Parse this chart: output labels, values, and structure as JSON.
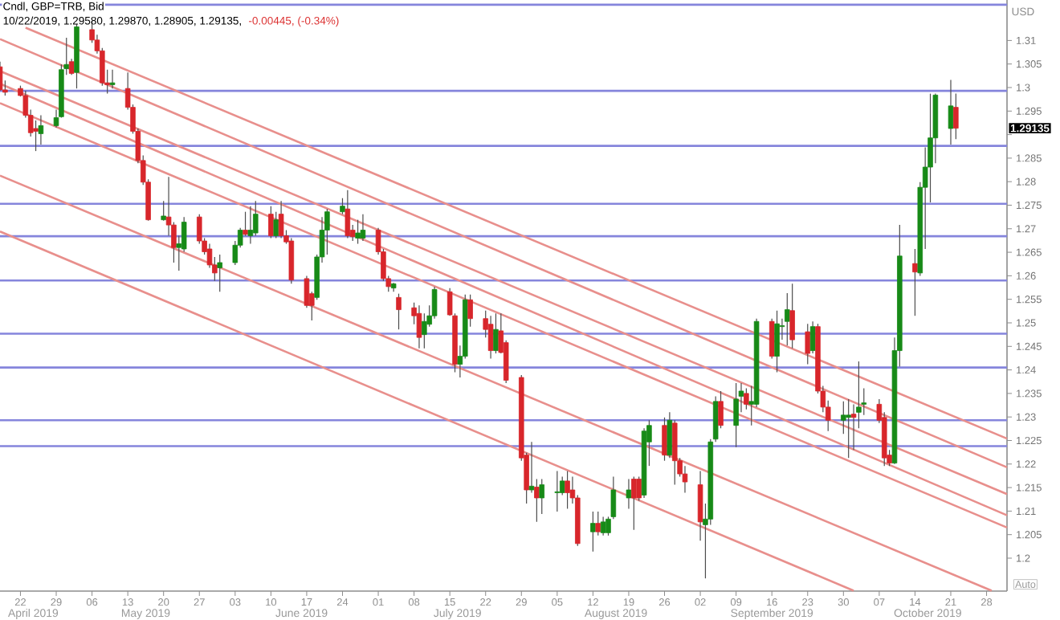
{
  "chart_data": {
    "type": "candlestick",
    "title": "Cndl, GBP=TRB, Bid",
    "subtitle": "10/22/2019, 1.29580, 1.29870, 1.28905, 1.29135,",
    "ylabel": "USD",
    "x": [
      "2019-04-18",
      "2019-04-19",
      "2019-04-22",
      "2019-04-23",
      "2019-04-24",
      "2019-04-25",
      "2019-04-26",
      "2019-04-29",
      "2019-04-30",
      "2019-05-01",
      "2019-05-02",
      "2019-05-03",
      "2019-05-06",
      "2019-05-07",
      "2019-05-08",
      "2019-05-09",
      "2019-05-10",
      "2019-05-13",
      "2019-05-14",
      "2019-05-15",
      "2019-05-16",
      "2019-05-17",
      "2019-05-20",
      "2019-05-21",
      "2019-05-22",
      "2019-05-23",
      "2019-05-24",
      "2019-05-27",
      "2019-05-28",
      "2019-05-29",
      "2019-05-30",
      "2019-05-31",
      "2019-06-03",
      "2019-06-04",
      "2019-06-05",
      "2019-06-06",
      "2019-06-07",
      "2019-06-10",
      "2019-06-11",
      "2019-06-12",
      "2019-06-13",
      "2019-06-14",
      "2019-06-17",
      "2019-06-18",
      "2019-06-19",
      "2019-06-20",
      "2019-06-21",
      "2019-06-24",
      "2019-06-25",
      "2019-06-26",
      "2019-06-27",
      "2019-06-28",
      "2019-07-01",
      "2019-07-02",
      "2019-07-03",
      "2019-07-04",
      "2019-07-05",
      "2019-07-08",
      "2019-07-09",
      "2019-07-10",
      "2019-07-11",
      "2019-07-12",
      "2019-07-15",
      "2019-07-16",
      "2019-07-17",
      "2019-07-18",
      "2019-07-19",
      "2019-07-22",
      "2019-07-23",
      "2019-07-24",
      "2019-07-25",
      "2019-07-26",
      "2019-07-29",
      "2019-07-30",
      "2019-07-31",
      "2019-08-01",
      "2019-08-02",
      "2019-08-05",
      "2019-08-06",
      "2019-08-07",
      "2019-08-08",
      "2019-08-09",
      "2019-08-12",
      "2019-08-13",
      "2019-08-14",
      "2019-08-15",
      "2019-08-16",
      "2019-08-19",
      "2019-08-20",
      "2019-08-21",
      "2019-08-22",
      "2019-08-23",
      "2019-08-26",
      "2019-08-27",
      "2019-08-28",
      "2019-08-29",
      "2019-08-30",
      "2019-09-02",
      "2019-09-03",
      "2019-09-04",
      "2019-09-05",
      "2019-09-06",
      "2019-09-09",
      "2019-09-10",
      "2019-09-11",
      "2019-09-12",
      "2019-09-13",
      "2019-09-16",
      "2019-09-17",
      "2019-09-18",
      "2019-09-19",
      "2019-09-20",
      "2019-09-23",
      "2019-09-24",
      "2019-09-25",
      "2019-09-26",
      "2019-09-27",
      "2019-09-30",
      "2019-10-01",
      "2019-10-02",
      "2019-10-03",
      "2019-10-04",
      "2019-10-07",
      "2019-10-08",
      "2019-10-09",
      "2019-10-10",
      "2019-10-11",
      "2019-10-14",
      "2019-10-15",
      "2019-10-16",
      "2019-10-17",
      "2019-10-18",
      "2019-10-21",
      "2019-10-22"
    ],
    "ohlc": [
      [
        1.3044,
        1.3055,
        1.2993,
        1.2995
      ],
      [
        1.2995,
        1.3015,
        1.2983,
        1.299
      ],
      [
        1.2998,
        1.3004,
        1.2981,
        1.2983
      ],
      [
        1.2983,
        1.2993,
        1.2936,
        1.2941
      ],
      [
        1.2941,
        1.2953,
        1.2896,
        1.2904
      ],
      [
        1.2913,
        1.293,
        1.2865,
        1.2907
      ],
      [
        1.2902,
        1.2941,
        1.2879,
        1.2919
      ],
      [
        1.2919,
        1.2953,
        1.2915,
        1.2936
      ],
      [
        1.2938,
        1.3049,
        1.2936,
        1.3038
      ],
      [
        1.304,
        1.3106,
        1.3027,
        1.3049
      ],
      [
        1.3055,
        1.3061,
        1.3027,
        1.303
      ],
      [
        1.3032,
        1.3135,
        1.2998,
        1.3129
      ],
      [
        1.3123,
        1.3141,
        1.3095,
        1.3101
      ],
      [
        1.3101,
        1.3112,
        1.3072,
        1.3078
      ],
      [
        1.3078,
        1.3084,
        1.3004,
        1.301
      ],
      [
        1.301,
        1.3038,
        1.2987,
        1.3006
      ],
      [
        1.3006,
        1.3038,
        1.2998,
        1.301
      ],
      [
        1.2998,
        1.3032,
        1.2953,
        1.2958
      ],
      [
        1.2958,
        1.2964,
        1.2902,
        1.2907
      ],
      [
        1.2907,
        1.2913,
        1.2839,
        1.2845
      ],
      [
        1.2845,
        1.2856,
        1.2793,
        1.2799
      ],
      [
        1.2799,
        1.2805,
        1.2717,
        1.2719
      ],
      [
        1.2719,
        1.2759,
        1.2717,
        1.2727
      ],
      [
        1.2725,
        1.281,
        1.2685,
        1.2708
      ],
      [
        1.2708,
        1.2714,
        1.2628,
        1.266
      ],
      [
        1.266,
        1.2685,
        1.2611,
        1.2668
      ],
      [
        1.2657,
        1.2725,
        1.2651,
        1.2714
      ],
      [
        1.2725,
        1.2731,
        1.2668,
        1.2674
      ],
      [
        1.2674,
        1.268,
        1.2645,
        1.2651
      ],
      [
        1.2657,
        1.2668,
        1.2617,
        1.2623
      ],
      [
        1.2623,
        1.264,
        1.2589,
        1.2606
      ],
      [
        1.2617,
        1.2645,
        1.2566,
        1.2628
      ],
      [
        1.2628,
        1.2674,
        1.2623,
        1.2665
      ],
      [
        1.2665,
        1.2702,
        1.266,
        1.2697
      ],
      [
        1.2697,
        1.2736,
        1.2685,
        1.2688
      ],
      [
        1.2685,
        1.2748,
        1.2668,
        1.2697
      ],
      [
        1.2691,
        1.2759,
        1.2685,
        1.2731
      ],
      [
        1.2731,
        1.2748,
        1.268,
        1.2685
      ],
      [
        1.2685,
        1.2736,
        1.268,
        1.2719
      ],
      [
        1.2731,
        1.2759,
        1.268,
        1.2685
      ],
      [
        1.2685,
        1.2697,
        1.2668,
        1.2672
      ],
      [
        1.2674,
        1.268,
        1.2583,
        1.2591
      ],
      [
        1.2594,
        1.26,
        1.2532,
        1.2537
      ],
      [
        1.2562,
        1.2566,
        1.2505,
        1.2537
      ],
      [
        1.2554,
        1.2645,
        1.2549,
        1.264
      ],
      [
        1.264,
        1.2725,
        1.2628,
        1.2697
      ],
      [
        1.2697,
        1.2742,
        1.2645,
        1.2736
      ],
      [
        1.2736,
        1.2765,
        1.2731,
        1.2748
      ],
      [
        1.2742,
        1.2782,
        1.268,
        1.2685
      ],
      [
        1.2697,
        1.2708,
        1.2674,
        1.2683
      ],
      [
        1.268,
        1.2719,
        1.2668,
        1.2691
      ],
      [
        1.268,
        1.2731,
        1.2674,
        1.2697
      ],
      [
        1.2697,
        1.2702,
        1.2645,
        1.2651
      ],
      [
        1.2651,
        1.2657,
        1.2589,
        1.2594
      ],
      [
        1.2594,
        1.26,
        1.2566,
        1.2577
      ],
      [
        1.2574,
        1.2585,
        1.2566,
        1.2583
      ],
      [
        1.2554,
        1.2562,
        1.2486,
        1.2528
      ],
      [
        1.2532,
        1.2543,
        1.2497,
        1.2515
      ],
      [
        1.252,
        1.2537,
        1.2446,
        1.2469
      ],
      [
        1.2475,
        1.252,
        1.2446,
        1.2503
      ],
      [
        1.2497,
        1.2537,
        1.2492,
        1.2515
      ],
      [
        1.2515,
        1.2577,
        1.2509,
        1.2571
      ],
      [
        1.2566,
        1.2574,
        1.2515,
        1.2517
      ],
      [
        1.2515,
        1.252,
        1.2395,
        1.2412
      ],
      [
        1.2412,
        1.2452,
        1.2384,
        1.2429
      ],
      [
        1.2429,
        1.256,
        1.2424,
        1.2549
      ],
      [
        1.2549,
        1.256,
        1.2492,
        1.2509
      ],
      [
        1.2509,
        1.2526,
        1.2469,
        1.2486
      ],
      [
        1.2497,
        1.2515,
        1.2424,
        1.2441
      ],
      [
        1.2441,
        1.252,
        1.2435,
        1.2486
      ],
      [
        1.2483,
        1.252,
        1.2435,
        1.2437
      ],
      [
        1.2458,
        1.2463,
        1.2372,
        1.2378
      ],
      [
        1.2384,
        1.2389,
        1.2207,
        1.2213
      ],
      [
        1.2219,
        1.2224,
        1.2116,
        1.2145
      ],
      [
        1.2145,
        1.2247,
        1.2139,
        1.2153
      ],
      [
        1.2151,
        1.2168,
        1.2077,
        1.2128
      ],
      [
        1.2128,
        1.2168,
        1.2094,
        1.2156
      ],
      [
        1.2139,
        1.2185,
        1.2099,
        1.2141
      ],
      [
        1.2139,
        1.2173,
        1.2134,
        1.2164
      ],
      [
        1.2164,
        1.2185,
        1.2105,
        1.2139
      ],
      [
        1.2145,
        1.2173,
        1.2116,
        1.2128
      ],
      [
        1.2128,
        1.2134,
        1.2026,
        1.2031
      ],
      [
        1.2056,
        1.2099,
        1.2014,
        1.2074
      ],
      [
        1.2074,
        1.2099,
        1.2048,
        1.2056
      ],
      [
        1.2054,
        1.2088,
        1.2048,
        1.2077
      ],
      [
        1.2054,
        1.2088,
        1.2048,
        1.2083
      ],
      [
        1.2088,
        1.2173,
        1.2083,
        1.2145
      ],
      [
        1.2128,
        1.2168,
        1.2105,
        1.2145
      ],
      [
        1.2168,
        1.2173,
        1.206,
        1.2128
      ],
      [
        1.2168,
        1.2173,
        1.2122,
        1.2128
      ],
      [
        1.2134,
        1.2276,
        1.2128,
        1.227
      ],
      [
        1.2247,
        1.2293,
        1.2196,
        1.2282
      ],
      [
        1.2282,
        1.2299,
        1.2207,
        1.2219
      ],
      [
        1.2219,
        1.231,
        1.2213,
        1.2293
      ],
      [
        1.2287,
        1.2293,
        1.2156,
        1.2207
      ],
      [
        1.2207,
        1.2213,
        1.2173,
        1.2179
      ],
      [
        1.2179,
        1.2196,
        1.2139,
        1.2162
      ],
      [
        1.2156,
        1.2185,
        1.2037,
        1.2077
      ],
      [
        1.2071,
        1.2116,
        1.1957,
        1.2083
      ],
      [
        1.2083,
        1.2253,
        1.2071,
        1.2247
      ],
      [
        1.2253,
        1.2344,
        1.2247,
        1.2333
      ],
      [
        1.2333,
        1.2355,
        1.2276,
        1.2282
      ],
      [
        1.2282,
        1.2372,
        1.2236,
        1.2338
      ],
      [
        1.2344,
        1.2372,
        1.231,
        1.2355
      ],
      [
        1.235,
        1.2361,
        1.2316,
        1.2327
      ],
      [
        1.2327,
        1.2366,
        1.2282,
        1.2333
      ],
      [
        1.2327,
        1.2509,
        1.2321,
        1.2503
      ],
      [
        1.2503,
        1.2509,
        1.2424,
        1.2429
      ],
      [
        1.2429,
        1.2526,
        1.2395,
        1.2498
      ],
      [
        1.2492,
        1.2509,
        1.2464,
        1.2494
      ],
      [
        1.2503,
        1.2563,
        1.2452,
        1.2528
      ],
      [
        1.2526,
        1.2583,
        1.2446,
        1.2464
      ],
      [
        1.2481,
        1.2498,
        1.2412,
        1.2435
      ],
      [
        1.2441,
        1.2503,
        1.2435,
        1.2492
      ],
      [
        1.2492,
        1.2498,
        1.235,
        1.2355
      ],
      [
        1.2355,
        1.2366,
        1.231,
        1.2321
      ],
      [
        1.2321,
        1.2335,
        1.227,
        1.2293
      ],
      [
        1.2293,
        1.2333,
        1.2264,
        1.2304
      ],
      [
        1.2299,
        1.2338,
        1.2213,
        1.2304
      ],
      [
        1.2306,
        1.2327,
        1.223,
        1.2299
      ],
      [
        1.231,
        1.2418,
        1.2276,
        1.2321
      ],
      [
        1.2327,
        1.2361,
        1.2304,
        1.233
      ],
      [
        1.2327,
        1.2338,
        1.2287,
        1.2293
      ],
      [
        1.2299,
        1.231,
        1.2196,
        1.2213
      ],
      [
        1.2219,
        1.223,
        1.2196,
        1.2202
      ],
      [
        1.2202,
        1.2469,
        1.22,
        1.2441
      ],
      [
        1.2441,
        1.2708,
        1.2407,
        1.2642
      ],
      [
        1.2626,
        1.2657,
        1.2515,
        1.2608
      ],
      [
        1.2606,
        1.2799,
        1.26,
        1.2788
      ],
      [
        1.2788,
        1.2873,
        1.2657,
        1.2831
      ],
      [
        1.2831,
        1.2987,
        1.2756,
        1.2893
      ],
      [
        1.2893,
        1.2987,
        1.2839,
        1.2984
      ],
      [
        1.2913,
        1.3016,
        1.2879,
        1.2961
      ],
      [
        1.2958,
        1.2987,
        1.28905,
        1.29135
      ]
    ],
    "series": [
      {
        "type": "line",
        "color": "#e88f8c",
        "x": [
          "2019-04-23",
          "2019-11-01"
        ],
        "values": [
          1.3127,
          1.2254
        ]
      },
      {
        "type": "line",
        "color": "#e88f8c",
        "x": [
          "2019-04-18",
          "2019-11-01"
        ],
        "values": [
          1.3103,
          1.2193
        ]
      },
      {
        "type": "line",
        "color": "#e88f8c",
        "x": [
          "2019-04-18",
          "2019-11-01"
        ],
        "values": [
          1.3035,
          1.2136
        ]
      },
      {
        "type": "line",
        "color": "#e88f8c",
        "x": [
          "2019-04-18",
          "2019-11-01"
        ],
        "values": [
          1.3008,
          1.2091
        ]
      },
      {
        "type": "line",
        "color": "#e88f8c",
        "x": [
          "2019-04-18",
          "2019-11-01"
        ],
        "values": [
          1.2967,
          1.2065
        ]
      },
      {
        "type": "line",
        "color": "#e88f8c",
        "x": [
          "2019-04-18",
          "2019-10-29"
        ],
        "values": [
          1.2813,
          1.1931
        ]
      },
      {
        "type": "line",
        "color": "#e88f8c",
        "x": [
          "2019-04-18",
          "2019-10-02"
        ],
        "values": [
          1.2694,
          1.1931
        ]
      }
    ],
    "ref_lines": [
      {
        "axis": "y",
        "value": 1.3176,
        "color": "#8585dc"
      },
      {
        "axis": "y",
        "value": 1.2993,
        "color": "#8585dc"
      },
      {
        "axis": "y",
        "value": 1.2876,
        "color": "#8585dc"
      },
      {
        "axis": "y",
        "value": 1.2753,
        "color": "#8585dc"
      },
      {
        "axis": "y",
        "value": 1.2684,
        "color": "#8585dc"
      },
      {
        "axis": "y",
        "value": 1.259,
        "color": "#8585dc"
      },
      {
        "axis": "y",
        "value": 1.2477,
        "color": "#8585dc"
      },
      {
        "axis": "y",
        "value": 1.2405,
        "color": "#8585dc"
      },
      {
        "axis": "y",
        "value": 1.2293,
        "color": "#8585dc"
      },
      {
        "axis": "y",
        "value": 1.2238,
        "color": "#8585dc"
      }
    ],
    "xlim": [
      "2019-04-18",
      "2019-11-01"
    ],
    "ylim": [
      1.193,
      1.3186
    ],
    "xticks": [
      {
        "value": "2019-04-22",
        "label": "22"
      },
      {
        "value": "2019-04-29",
        "label": "29"
      },
      {
        "value": "2019-05-06",
        "label": "06"
      },
      {
        "value": "2019-05-13",
        "label": "13"
      },
      {
        "value": "2019-05-20",
        "label": "20"
      },
      {
        "value": "2019-05-27",
        "label": "27"
      },
      {
        "value": "2019-06-03",
        "label": "03"
      },
      {
        "value": "2019-06-10",
        "label": "10"
      },
      {
        "value": "2019-06-17",
        "label": "17"
      },
      {
        "value": "2019-06-24",
        "label": "24"
      },
      {
        "value": "2019-07-01",
        "label": "01"
      },
      {
        "value": "2019-07-08",
        "label": "08"
      },
      {
        "value": "2019-07-15",
        "label": "15"
      },
      {
        "value": "2019-07-22",
        "label": "22"
      },
      {
        "value": "2019-07-29",
        "label": "29"
      },
      {
        "value": "2019-08-05",
        "label": "05"
      },
      {
        "value": "2019-08-12",
        "label": "12"
      },
      {
        "value": "2019-08-19",
        "label": "19"
      },
      {
        "value": "2019-08-26",
        "label": "26"
      },
      {
        "value": "2019-09-02",
        "label": "02"
      },
      {
        "value": "2019-09-09",
        "label": "09"
      },
      {
        "value": "2019-09-16",
        "label": "16"
      },
      {
        "value": "2019-09-23",
        "label": "23"
      },
      {
        "value": "2019-09-30",
        "label": "30"
      },
      {
        "value": "2019-10-07",
        "label": "07"
      },
      {
        "value": "2019-10-14",
        "label": "14"
      },
      {
        "value": "2019-10-21",
        "label": "21"
      },
      {
        "value": "2019-10-28",
        "label": "28"
      }
    ],
    "yticks": [
      1.2,
      1.205,
      1.21,
      1.215,
      1.22,
      1.225,
      1.23,
      1.235,
      1.24,
      1.245,
      1.25,
      1.255,
      1.26,
      1.265,
      1.27,
      1.275,
      1.28,
      1.285,
      {
        "value": 1.29,
        "label": null
      },
      1.295,
      1.3,
      1.305,
      1.31
    ],
    "annotations": [
      "-0.00445, (-0.34%)",
      "Auto",
      "1.29135",
      "April 2019",
      "May 2019",
      "June 2019",
      "July 2019",
      "August 2019",
      "September 2019",
      "October 2019"
    ]
  }
}
